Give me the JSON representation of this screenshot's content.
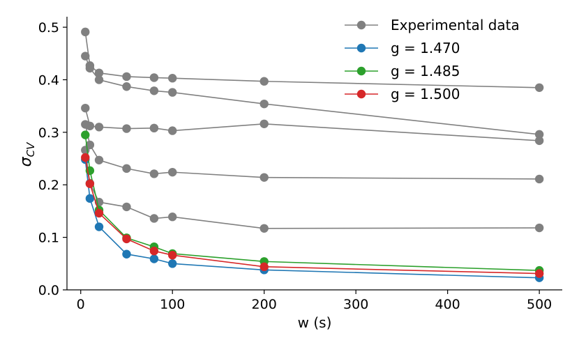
{
  "chart_data": {
    "type": "line",
    "title": "",
    "xlabel": "w (s)",
    "ylabel": "σ",
    "ylabel_sub": "CV",
    "xlim": [
      -15,
      525
    ],
    "ylim": [
      0,
      0.52
    ],
    "x_ticks": [
      0,
      100,
      200,
      300,
      400,
      500
    ],
    "y_ticks": [
      0.0,
      0.1,
      0.2,
      0.3,
      0.4,
      0.5
    ],
    "x_tick_labels": [
      "0",
      "100",
      "200",
      "300",
      "400",
      "500"
    ],
    "y_tick_labels": [
      "0.0",
      "0.1",
      "0.2",
      "0.3",
      "0.4",
      "0.5"
    ],
    "grid": false,
    "legend_position": "top-right",
    "x": [
      5,
      10,
      20,
      50,
      80,
      100,
      200,
      500
    ],
    "legend": [
      {
        "label": "Experimental data",
        "color": "#808080"
      },
      {
        "label": "g = 1.470",
        "color": "#1f77b4"
      },
      {
        "label": "g = 1.485",
        "color": "#2ca02c"
      },
      {
        "label": "g = 1.500",
        "color": "#d62728"
      }
    ],
    "series": [
      {
        "group": "experimental",
        "color": "#808080",
        "values": [
          0.491,
          0.427,
          0.413,
          0.406,
          0.404,
          0.403,
          0.397,
          0.385
        ]
      },
      {
        "group": "experimental",
        "color": "#808080",
        "values": [
          0.445,
          0.422,
          0.4,
          0.387,
          0.379,
          0.376,
          0.354,
          0.296
        ]
      },
      {
        "group": "experimental",
        "color": "#808080",
        "values": [
          0.346,
          0.312,
          0.31,
          0.307,
          0.308,
          0.303,
          0.316,
          0.284
        ]
      },
      {
        "group": "experimental",
        "color": "#808080",
        "values": [
          0.315,
          0.276,
          0.247,
          0.231,
          0.221,
          0.224,
          0.214,
          0.211
        ]
      },
      {
        "group": "experimental",
        "color": "#808080",
        "values": [
          0.266,
          0.203,
          0.167,
          0.158,
          0.136,
          0.139,
          0.117,
          0.118
        ]
      },
      {
        "name": "g = 1.470",
        "color": "#1f77b4",
        "values": [
          0.248,
          0.174,
          0.12,
          0.068,
          0.059,
          0.05,
          0.038,
          0.023
        ]
      },
      {
        "name": "g = 1.485",
        "color": "#2ca02c",
        "values": [
          0.295,
          0.227,
          0.152,
          0.099,
          0.082,
          0.069,
          0.054,
          0.037
        ]
      },
      {
        "name": "g = 1.500",
        "color": "#d62728",
        "values": [
          0.252,
          0.202,
          0.146,
          0.097,
          0.074,
          0.066,
          0.044,
          0.031
        ]
      }
    ]
  }
}
